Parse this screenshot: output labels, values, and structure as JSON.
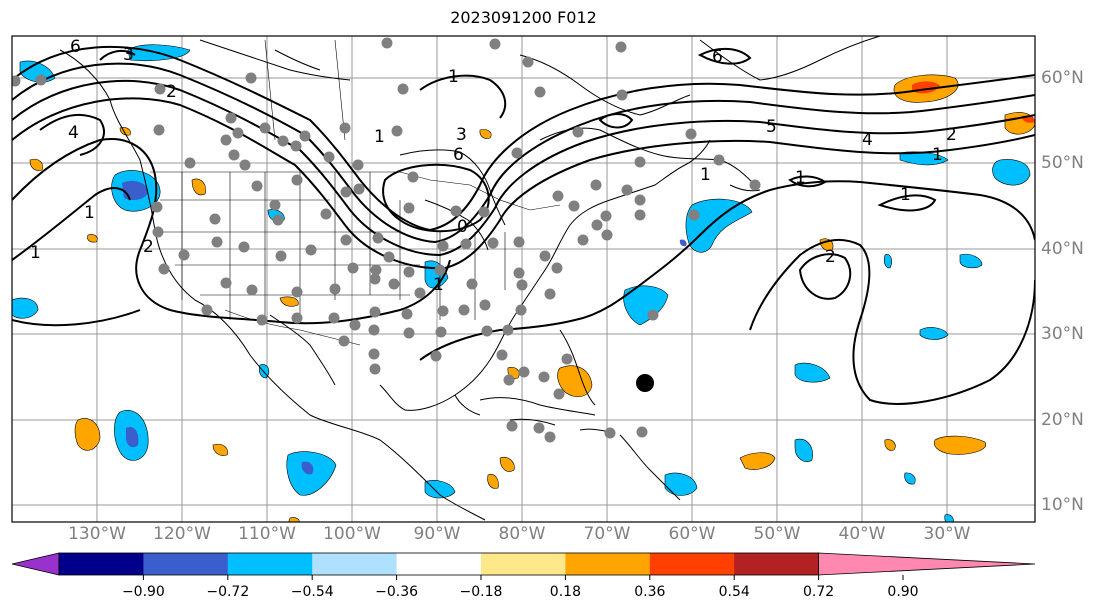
{
  "title": "2023091200 F012",
  "map": {
    "lat_ticks": [
      "60°N",
      "50°N",
      "40°N",
      "30°N",
      "20°N",
      "10°N"
    ],
    "lon_ticks": [
      "130°W",
      "120°W",
      "110°W",
      "100°W",
      "90°W",
      "80°W",
      "70°W",
      "60°W",
      "50°W",
      "40°W",
      "30°W"
    ],
    "contour_labels": [
      "6",
      "3",
      "2",
      "1",
      "4",
      "1",
      "1",
      "2",
      "3",
      "6",
      "1",
      "5",
      "4",
      "2",
      "6",
      "1",
      "1",
      "1",
      "2",
      "0",
      "1",
      "1"
    ]
  },
  "colorbar": {
    "ticks": [
      "−0.90",
      "−0.72",
      "−0.54",
      "−0.36",
      "−0.18",
      "0.18",
      "0.36",
      "0.54",
      "0.72",
      "0.90"
    ],
    "colors": [
      "#9932cc",
      "#00008b",
      "#3a5fcd",
      "#00bfff",
      "#b0e0ff",
      "#ffffff",
      "#ffe88a",
      "#ffa500",
      "#ff4000",
      "#b22222",
      "#ff88b0"
    ]
  },
  "colors": {
    "stations": "#808080",
    "marker": "#000000",
    "positive": "#ffa500",
    "negative": "#00bfff"
  }
}
